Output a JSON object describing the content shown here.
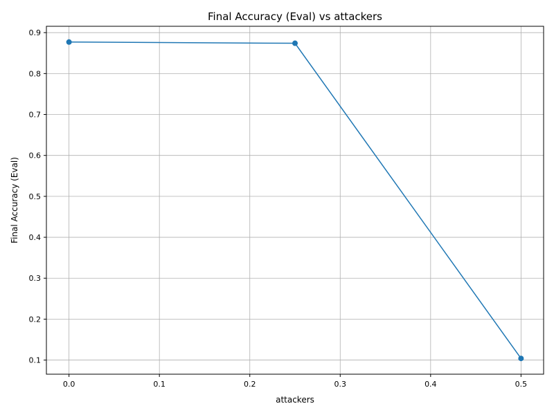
{
  "chart_data": {
    "type": "line",
    "title": "Final Accuracy (Eval) vs attackers",
    "xlabel": "attackers",
    "ylabel": "Final Accuracy (Eval)",
    "x": [
      0.0,
      0.25,
      0.5
    ],
    "series": [
      {
        "values": [
          0.877,
          0.874,
          0.104
        ],
        "color": "#1f77b4",
        "marker": "circle"
      }
    ],
    "xlim": [
      -0.025,
      0.525
    ],
    "ylim": [
      0.0655,
      0.9155
    ],
    "xticks": [
      0.0,
      0.1,
      0.2,
      0.3,
      0.4,
      0.5
    ],
    "xtick_labels": [
      "0.0",
      "0.1",
      "0.2",
      "0.3",
      "0.4",
      "0.5"
    ],
    "yticks": [
      0.1,
      0.2,
      0.3,
      0.4,
      0.5,
      0.6,
      0.7,
      0.8,
      0.9
    ],
    "ytick_labels": [
      "0.1",
      "0.2",
      "0.3",
      "0.4",
      "0.5",
      "0.6",
      "0.7",
      "0.8",
      "0.9"
    ],
    "grid": true,
    "legend": "none"
  }
}
